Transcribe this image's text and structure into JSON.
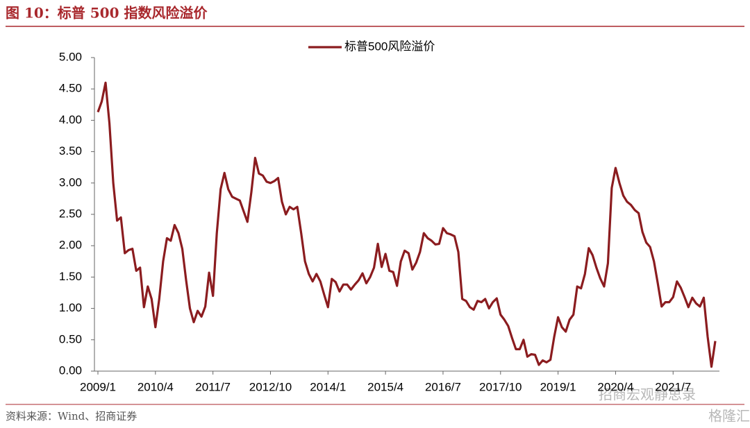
{
  "header": {
    "title": "图 10：标普 500 指数风险溢价"
  },
  "source": "资料来源：Wind、招商证券",
  "watermark": [
    "招商宏观静思录",
    "格隆汇"
  ],
  "chart_data": {
    "type": "line",
    "categories": [
      "2009/1",
      null,
      null,
      null,
      null,
      null,
      null,
      null,
      null,
      null,
      null,
      null,
      null,
      null,
      null,
      "2010/4",
      null,
      null,
      null,
      null,
      null,
      null,
      null,
      null,
      null,
      null,
      null,
      null,
      null,
      null,
      "2011/7",
      null,
      null,
      null,
      null,
      null,
      null,
      null,
      null,
      null,
      null,
      null,
      null,
      null,
      null,
      "2012/10",
      null,
      null,
      null,
      null,
      null,
      null,
      null,
      null,
      null,
      null,
      null,
      null,
      null,
      null,
      "2014/1",
      null,
      null,
      null,
      null,
      null,
      null,
      null,
      null,
      null,
      null,
      null,
      null,
      null,
      null,
      "2015/4",
      null,
      null,
      null,
      null,
      null,
      null,
      null,
      null,
      null,
      null,
      null,
      null,
      null,
      null,
      "2016/7",
      null,
      null,
      null,
      null,
      null,
      null,
      null,
      null,
      null,
      null,
      null,
      null,
      null,
      null,
      "2017/10",
      null,
      null,
      null,
      null,
      null,
      null,
      null,
      null,
      null,
      null,
      null,
      null,
      null,
      null,
      "2019/1",
      null,
      null,
      null,
      null,
      null,
      null,
      null,
      null,
      null,
      null,
      null,
      null,
      null,
      null,
      "2020/4",
      null,
      null,
      null,
      null,
      null,
      null,
      null,
      null,
      null,
      null,
      null,
      null,
      null,
      null,
      "2021/7",
      null,
      null,
      null,
      null,
      null,
      null,
      null,
      null,
      null,
      null,
      null
    ],
    "series": [
      {
        "name": "标普500风险溢价",
        "color": "#8b1c1f",
        "values": [
          4.13,
          4.3,
          4.6,
          3.95,
          3.0,
          2.4,
          2.45,
          1.88,
          1.93,
          1.95,
          1.6,
          1.65,
          1.02,
          1.35,
          1.15,
          0.7,
          1.15,
          1.75,
          2.12,
          2.08,
          2.33,
          2.2,
          1.95,
          1.45,
          1.0,
          0.78,
          0.96,
          0.87,
          1.03,
          1.57,
          1.2,
          2.2,
          2.9,
          3.16,
          2.9,
          2.78,
          2.75,
          2.72,
          2.55,
          2.38,
          2.85,
          3.4,
          3.15,
          3.12,
          3.02,
          3.0,
          3.03,
          3.08,
          2.7,
          2.5,
          2.62,
          2.58,
          2.62,
          2.2,
          1.75,
          1.55,
          1.43,
          1.55,
          1.43,
          1.22,
          1.02,
          1.47,
          1.42,
          1.27,
          1.38,
          1.38,
          1.3,
          1.38,
          1.45,
          1.56,
          1.4,
          1.5,
          1.65,
          2.03,
          1.66,
          1.87,
          1.6,
          1.58,
          1.36,
          1.75,
          1.92,
          1.88,
          1.62,
          1.73,
          1.9,
          2.2,
          2.12,
          2.08,
          2.02,
          2.03,
          2.28,
          2.2,
          2.18,
          2.15,
          1.9,
          1.15,
          1.12,
          1.02,
          0.98,
          1.12,
          1.1,
          1.15,
          1.0,
          1.1,
          1.16,
          0.9,
          0.82,
          0.72,
          0.53,
          0.35,
          0.35,
          0.5,
          0.23,
          0.27,
          0.26,
          0.1,
          0.17,
          0.14,
          0.18,
          0.55,
          0.86,
          0.7,
          0.63,
          0.82,
          0.9,
          1.35,
          1.32,
          1.55,
          1.96,
          1.85,
          1.65,
          1.48,
          1.35,
          1.72,
          2.92,
          3.24,
          3.0,
          2.8,
          2.7,
          2.65,
          2.57,
          2.52,
          2.22,
          2.05,
          1.98,
          1.75,
          1.4,
          1.03,
          1.1,
          1.1,
          1.18,
          1.43,
          1.33,
          1.18,
          1.02,
          1.17,
          1.08,
          1.03,
          1.17,
          0.55,
          0.07,
          0.48
        ]
      }
    ],
    "ylim": [
      0,
      5
    ],
    "yticks": [
      {
        "value": 0,
        "label": "0.00"
      },
      {
        "value": 0.5,
        "label": "0.50"
      },
      {
        "value": 1,
        "label": "1.00"
      },
      {
        "value": 1.5,
        "label": "1.50"
      },
      {
        "value": 2,
        "label": "2.00"
      },
      {
        "value": 2.5,
        "label": "2.50"
      },
      {
        "value": 3,
        "label": "3.00"
      },
      {
        "value": 3.5,
        "label": "3.50"
      },
      {
        "value": 4,
        "label": "4.00"
      },
      {
        "value": 4.5,
        "label": "4.50"
      },
      {
        "value": 5,
        "label": "5.00"
      }
    ],
    "grid": false,
    "legend": "top"
  }
}
